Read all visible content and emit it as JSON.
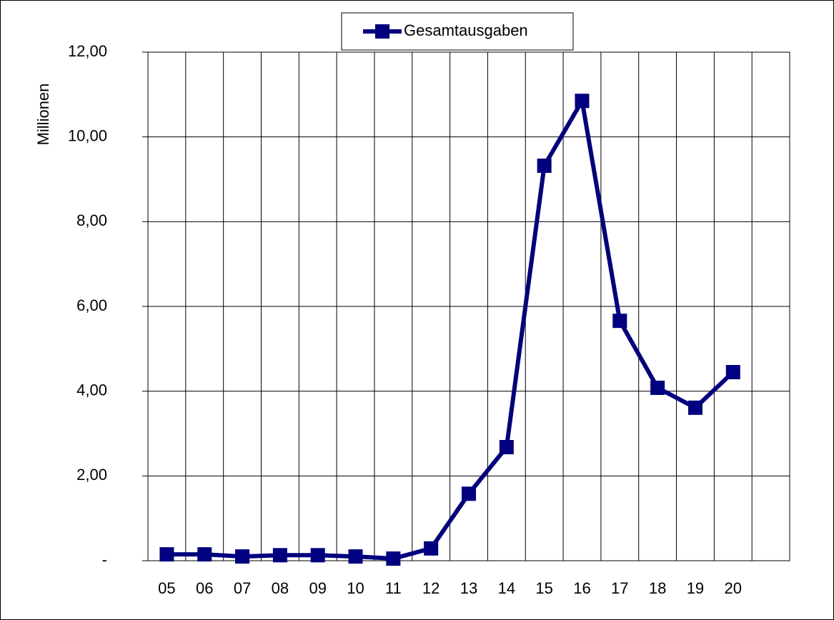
{
  "chart_data": {
    "type": "line",
    "legend": "top",
    "y_label": "Millionen",
    "categories": [
      "05",
      "06",
      "07",
      "08",
      "09",
      "10",
      "11",
      "12",
      "13",
      "14",
      "15",
      "16",
      "17",
      "18",
      "19",
      "20",
      null
    ],
    "series": [
      {
        "name": "Gesamtausgaben",
        "color": "#000080",
        "values": [
          0.15,
          0.15,
          0.1,
          0.13,
          0.13,
          0.1,
          0.05,
          0.29,
          1.58,
          2.68,
          9.32,
          10.85,
          5.66,
          4.08,
          3.61,
          4.45,
          null
        ]
      }
    ],
    "ylim": [
      0,
      12
    ],
    "yticks": [
      {
        "value": 0,
        "label": "-"
      },
      {
        "value": 2,
        "label": "2,00"
      },
      {
        "value": 4,
        "label": "4,00"
      },
      {
        "value": 6,
        "label": "6,00"
      },
      {
        "value": 8,
        "label": "8,00"
      },
      {
        "value": 10,
        "label": "10,00"
      },
      {
        "value": 12,
        "label": "12,00"
      }
    ],
    "grid": true
  }
}
